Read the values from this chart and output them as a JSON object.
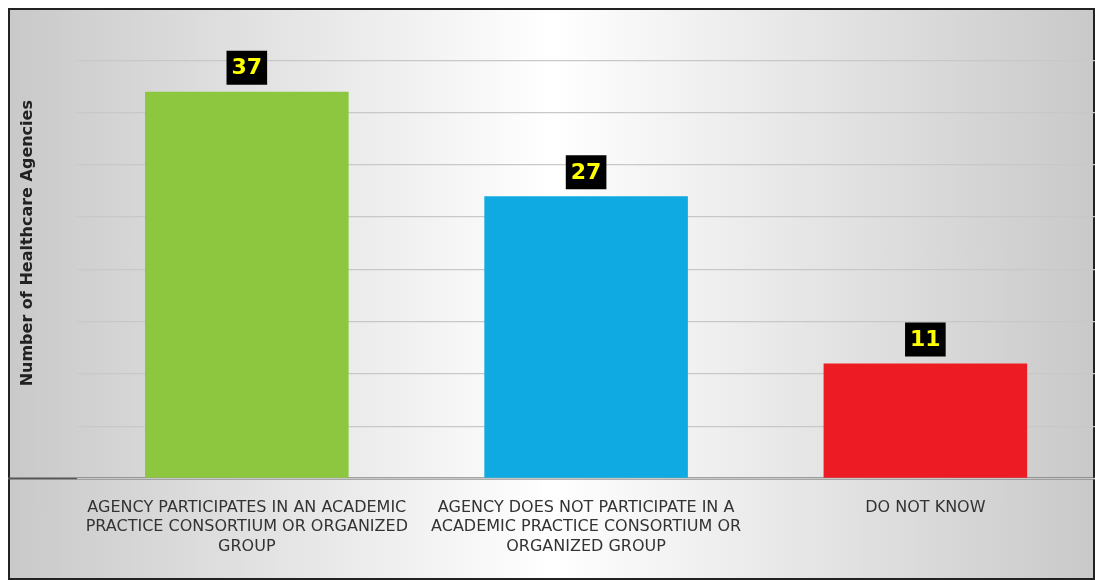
{
  "chart_data": {
    "type": "bar",
    "ylabel": "Number of Healthcare Agencies",
    "categories": [
      "AGENCY PARTICIPATES IN AN ACADEMIC PRACTICE CONSORTIUM OR ORGANIZED GROUP",
      "AGENCY DOES NOT PARTICIPATE IN A ACADEMIC PRACTICE CONSORTIUM OR ORGANIZED GROUP",
      "DO NOT KNOW"
    ],
    "values": [
      37,
      27,
      11
    ],
    "colors": [
      "#8dc63f",
      "#0faae1",
      "#ed1c24"
    ],
    "ylim": [
      0,
      45
    ],
    "yticks": [
      {
        "value": 0,
        "label": null
      },
      {
        "value": 5,
        "label": null
      },
      {
        "value": 10,
        "label": null
      },
      {
        "value": 15,
        "label": null
      },
      {
        "value": 20,
        "label": null
      },
      {
        "value": 25,
        "label": null
      },
      {
        "value": 30,
        "label": null
      },
      {
        "value": 35,
        "label": null
      },
      {
        "value": 40,
        "label": null
      }
    ],
    "grid": "y",
    "legend": false,
    "tick_labels": "x",
    "data_labels": true
  }
}
